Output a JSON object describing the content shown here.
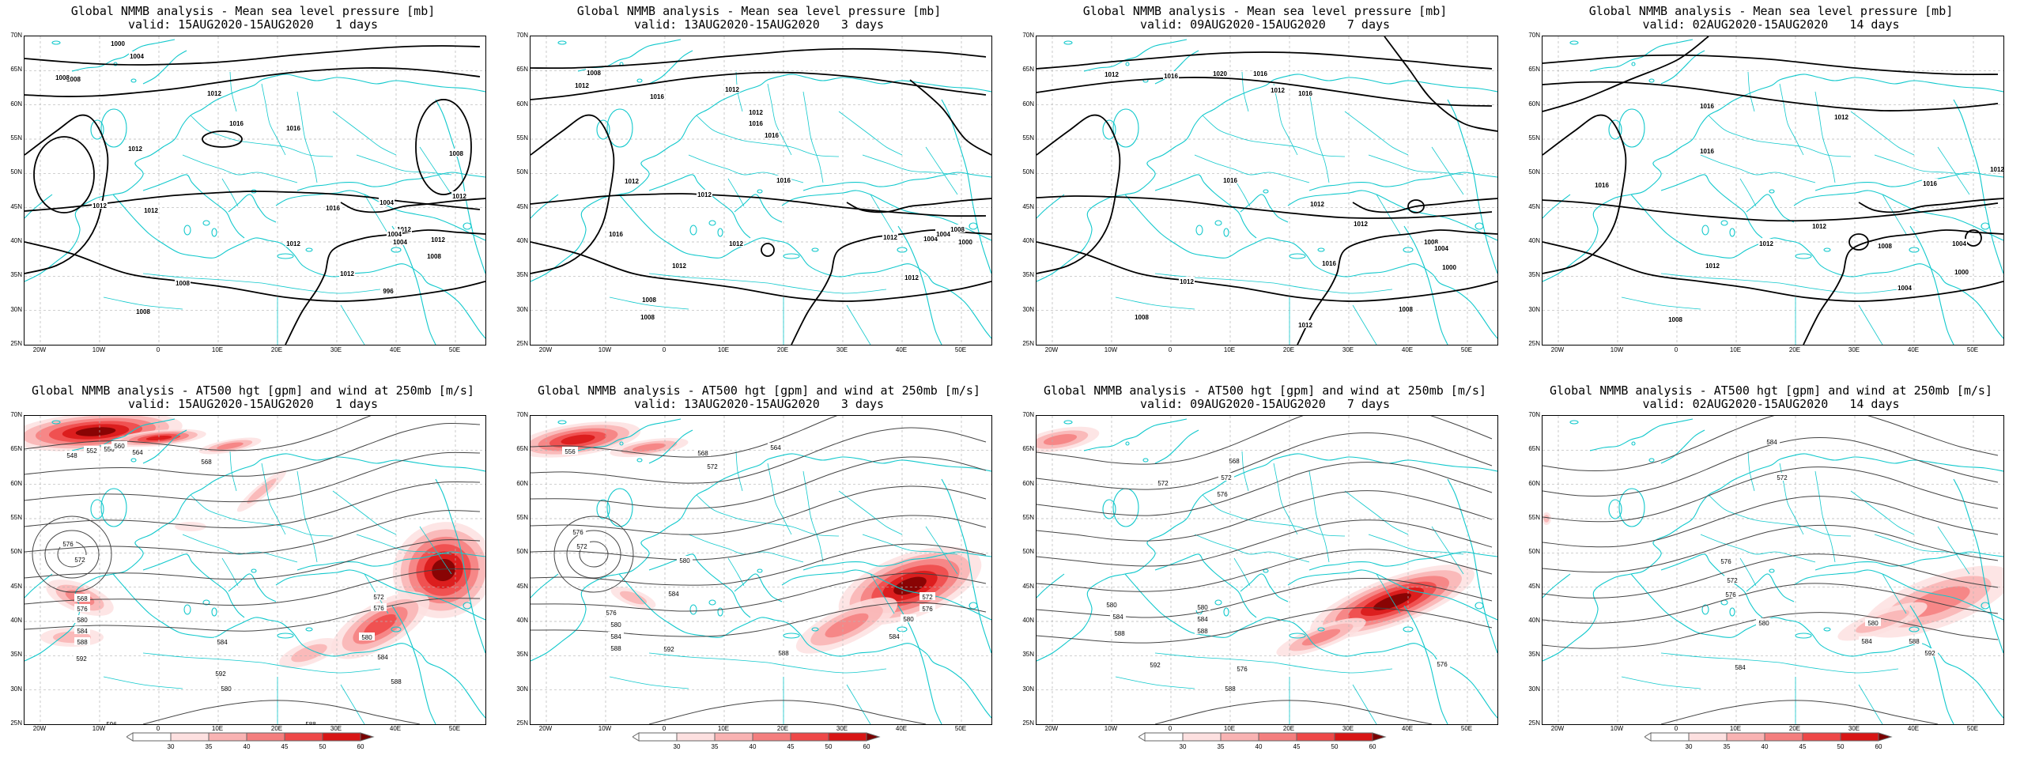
{
  "panels": [
    {
      "kind": "mslp",
      "title": "Global NMMB analysis - Mean sea level pressure [mb]",
      "valid": "valid: 15AUG2020-15AUG2020   1 days",
      "labels": [
        "1000",
        "1004",
        "1008",
        "1008",
        "1012",
        "1016",
        "1012",
        "1012",
        "1012",
        "1016",
        "1004",
        "1008",
        "1012",
        "1012",
        "1012",
        "1012",
        "1008",
        "1004",
        "1004",
        "1008",
        "1012",
        "1016",
        "996",
        "1008"
      ]
    },
    {
      "kind": "mslp",
      "title": "Global NMMB analysis - Mean sea level pressure [mb]",
      "valid": "valid: 13AUG2020-15AUG2020   3 days",
      "labels": [
        "1008",
        "1012",
        "1016",
        "1012",
        "1012",
        "1016",
        "1016",
        "1012",
        "1012",
        "1012",
        "1016",
        "1012",
        "1004",
        "1008",
        "1000",
        "1012",
        "1008",
        "1004",
        "1012",
        "1016",
        "1012",
        "1008"
      ]
    },
    {
      "kind": "mslp",
      "title": "Global NMMB analysis - Mean sea level pressure [mb]",
      "valid": "valid: 09AUG2020-15AUG2020   7 days",
      "labels": [
        "1012",
        "1016",
        "1020",
        "1016",
        "1012",
        "1016",
        "1016",
        "1012",
        "1012",
        "1008",
        "1004",
        "1000",
        "1012",
        "1008",
        "1016",
        "1012",
        "1008"
      ]
    },
    {
      "kind": "mslp",
      "title": "Global NMMB analysis - Mean sea level pressure [mb]",
      "valid": "valid: 02AUG2020-15AUG2020   14 days",
      "labels": [
        "1016",
        "1016",
        "1016",
        "1012",
        "1016",
        "1012",
        "1012",
        "1012",
        "1008",
        "1004",
        "1000",
        "1004",
        "1012",
        "1008"
      ]
    },
    {
      "kind": "z500",
      "title": "Global NMMB analysis - AT500 hgt [gpm] and wind at 250mb [m/s]",
      "valid": "valid: 15AUG2020-15AUG2020   1 days",
      "labels": [
        "548",
        "552",
        "556",
        "560",
        "564",
        "568",
        "576",
        "572",
        "568",
        "576",
        "580",
        "584",
        "588",
        "592",
        "584",
        "592",
        "572",
        "576",
        "580",
        "584",
        "588",
        "596",
        "580",
        "588"
      ]
    },
    {
      "kind": "z500",
      "title": "Global NMMB analysis - AT500 hgt [gpm] and wind at 250mb [m/s]",
      "valid": "valid: 13AUG2020-15AUG2020   3 days",
      "labels": [
        "556",
        "568",
        "572",
        "564",
        "576",
        "572",
        "580",
        "584",
        "576",
        "580",
        "584",
        "588",
        "592",
        "572",
        "576",
        "580",
        "584",
        "588",
        "596"
      ]
    },
    {
      "kind": "z500",
      "title": "Global NMMB analysis - AT500 hgt [gpm] and wind at 250mb [m/s]",
      "valid": "valid: 09AUG2020-15AUG2020   7 days",
      "labels": [
        "572",
        "568",
        "572",
        "576",
        "580",
        "584",
        "588",
        "576",
        "580",
        "584",
        "588",
        "592",
        "588",
        "576"
      ]
    },
    {
      "kind": "z500",
      "title": "Global NMMB analysis - AT500 hgt [gpm] and wind at 250mb [m/s]",
      "valid": "valid: 02AUG2020-15AUG2020   14 days",
      "labels": [
        "584",
        "572",
        "576",
        "572",
        "576",
        "580",
        "584",
        "588",
        "592",
        "580",
        "584"
      ]
    }
  ],
  "lat_ticks": [
    "70N",
    "65N",
    "60N",
    "55N",
    "50N",
    "45N",
    "40N",
    "35N",
    "30N",
    "25N"
  ],
  "lon_ticks": [
    "20W",
    "10W",
    "0",
    "10E",
    "20E",
    "30E",
    "40E",
    "50E"
  ],
  "colorbar": {
    "ticks": [
      "30",
      "35",
      "40",
      "45",
      "50",
      "60"
    ],
    "colors": [
      "#ffffff",
      "#fde0e0",
      "#f9b3b3",
      "#f47e7e",
      "#ee4848",
      "#d81515",
      "#7a0000"
    ]
  },
  "colors": {
    "coast": "#11c8cc",
    "contour": "#000000",
    "grid": "#b5b5b5",
    "wind": "#e01818"
  }
}
